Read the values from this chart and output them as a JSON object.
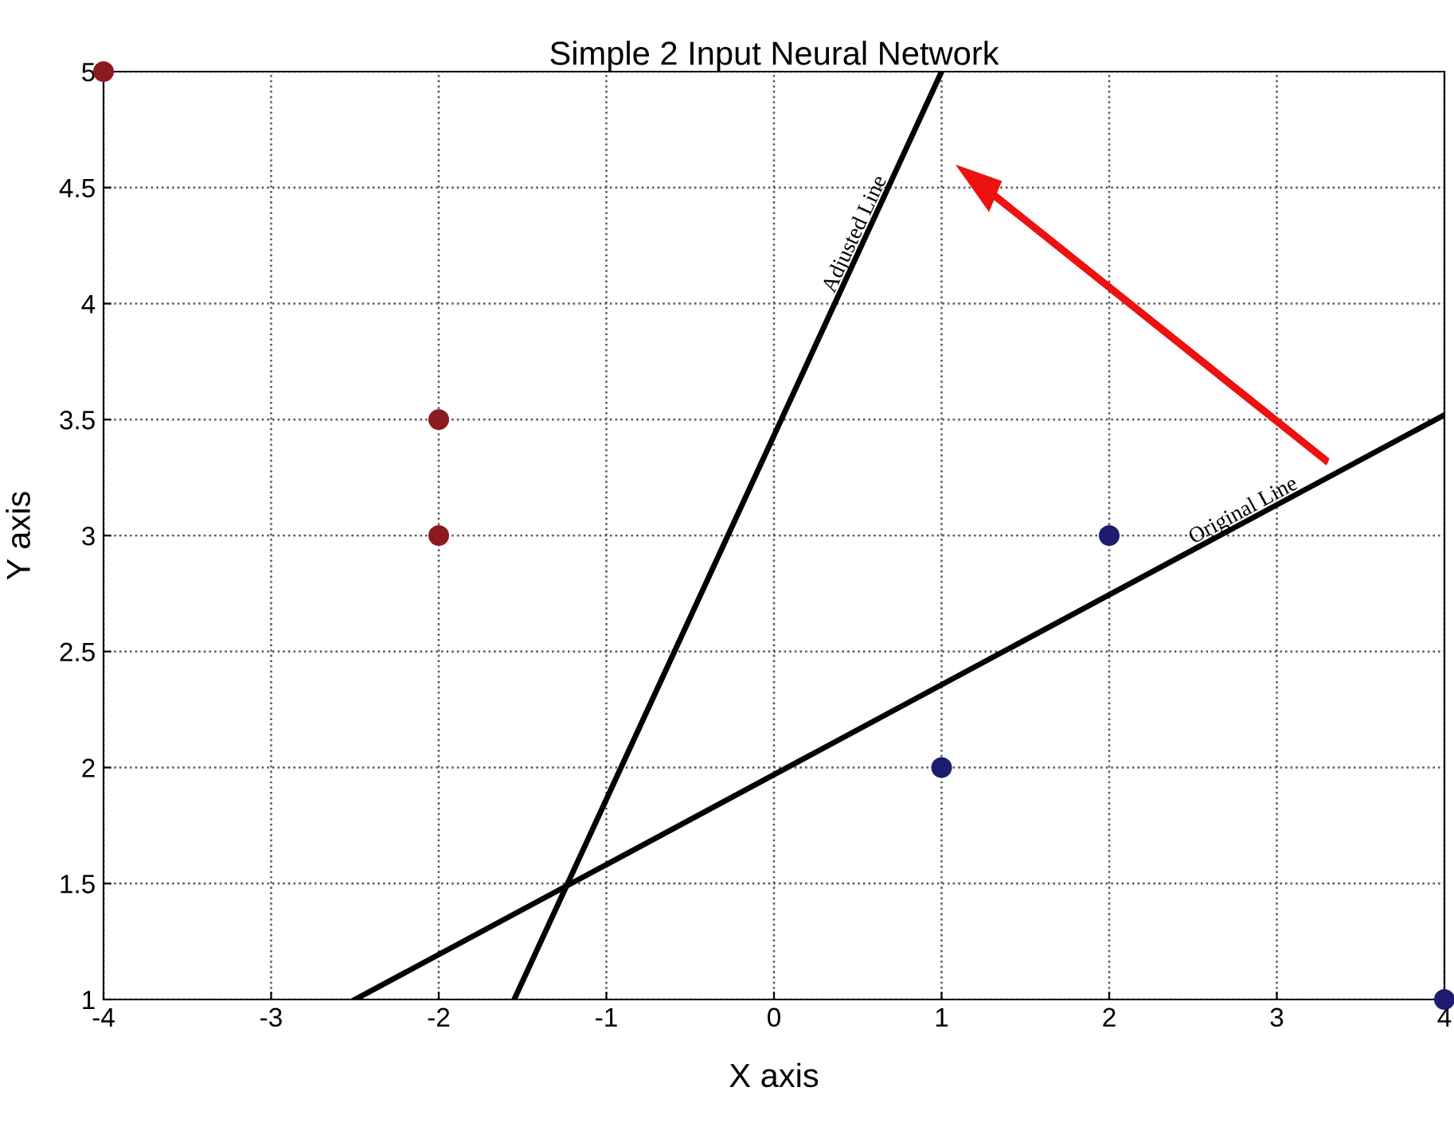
{
  "chart_data": {
    "type": "scatter",
    "title": "Simple 2 Input Neural Network",
    "xlabel": "X axis",
    "ylabel": "Y axis",
    "xlim": [
      -4,
      4
    ],
    "ylim": [
      1,
      5
    ],
    "xticks": [
      -4,
      -3,
      -2,
      -1,
      0,
      1,
      2,
      3,
      4
    ],
    "yticks": [
      1,
      1.5,
      2,
      2.5,
      3,
      3.5,
      4,
      4.5,
      5
    ],
    "grid": true,
    "series": [
      {
        "marker": "circle",
        "color": "#8b1a22",
        "x": [
          -4,
          -2,
          -2
        ],
        "values": [
          5,
          3.5,
          3
        ]
      },
      {
        "marker": "circle",
        "color": "#1c1c70",
        "x": [
          2,
          1,
          4
        ],
        "values": [
          3,
          2,
          1
        ]
      },
      {
        "type": "line",
        "marker": "none",
        "name": "Original Line",
        "color": "#000000",
        "x": [
          -2.5,
          4
        ],
        "values": [
          1,
          3.52
        ]
      },
      {
        "type": "line",
        "marker": "none",
        "name": "Adjusted Line",
        "color": "#000000",
        "x": [
          -1.55,
          1
        ],
        "values": [
          1,
          5
        ]
      }
    ]
  }
}
